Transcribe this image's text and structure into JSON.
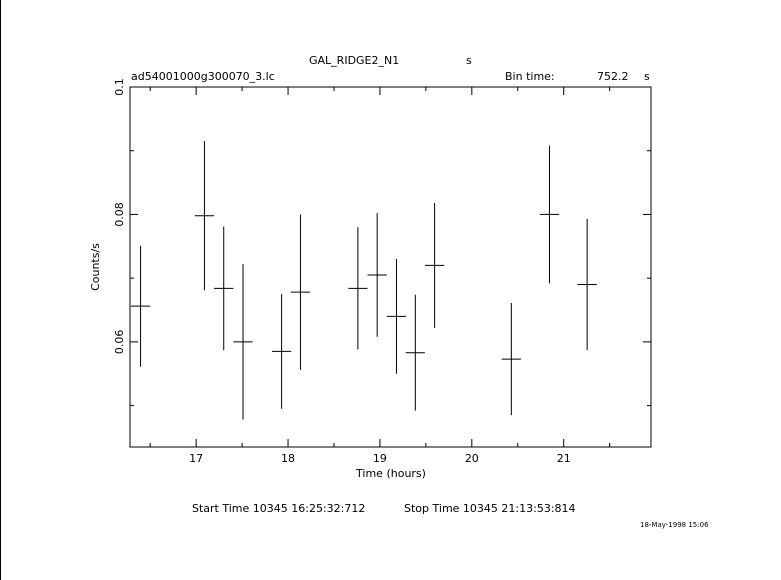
{
  "header": {
    "object_name": "GAL_RIDGE2_N1",
    "object_unit": "s",
    "file_name": "ad54001000g300070_3.lc",
    "bin_time_label": "Bin time:",
    "bin_time_value": "752.2",
    "bin_time_unit": "s"
  },
  "footer": {
    "start_time": "Start Time 10345 16:25:32:712",
    "stop_time": "Stop Time 10345 21:13:53:814",
    "date_stamp": "18-May-1998 15:06"
  },
  "chart_data": {
    "type": "scatter",
    "xlabel": "Time (hours)",
    "ylabel": "Counts/s",
    "xlim": [
      16.28,
      21.95
    ],
    "ylim": [
      0.0435,
      0.1
    ],
    "x_major_ticks": [
      17,
      18,
      19,
      20,
      21
    ],
    "y_major_ticks": [
      0.06,
      0.08,
      0.1
    ],
    "x_tick_labels": [
      "17",
      "18",
      "19",
      "20",
      "21"
    ],
    "y_tick_labels": [
      "0.06",
      "0.08",
      "0.1"
    ],
    "grid": false,
    "error_bars": true,
    "points": [
      {
        "x": 16.395,
        "xerr": 0.105,
        "y": 0.0656,
        "yerr": 0.0095
      },
      {
        "x": 17.09,
        "xerr": 0.105,
        "y": 0.0798,
        "yerr": 0.0117
      },
      {
        "x": 17.3,
        "xerr": 0.105,
        "y": 0.0684,
        "yerr": 0.0097
      },
      {
        "x": 17.51,
        "xerr": 0.105,
        "y": 0.06,
        "yerr": 0.0122
      },
      {
        "x": 17.93,
        "xerr": 0.105,
        "y": 0.0585,
        "yerr": 0.009
      },
      {
        "x": 18.135,
        "xerr": 0.105,
        "y": 0.0678,
        "yerr": 0.0122
      },
      {
        "x": 18.76,
        "xerr": 0.105,
        "y": 0.0684,
        "yerr": 0.0096
      },
      {
        "x": 18.97,
        "xerr": 0.105,
        "y": 0.0705,
        "yerr": 0.0097
      },
      {
        "x": 19.18,
        "xerr": 0.105,
        "y": 0.064,
        "yerr": 0.009
      },
      {
        "x": 19.385,
        "xerr": 0.105,
        "y": 0.0583,
        "yerr": 0.0091
      },
      {
        "x": 19.595,
        "xerr": 0.105,
        "y": 0.072,
        "yerr": 0.0098
      },
      {
        "x": 20.43,
        "xerr": 0.105,
        "y": 0.0573,
        "yerr": 0.0088
      },
      {
        "x": 20.845,
        "xerr": 0.105,
        "y": 0.08,
        "yerr": 0.0108
      },
      {
        "x": 21.255,
        "xerr": 0.105,
        "y": 0.069,
        "yerr": 0.0103
      }
    ]
  }
}
